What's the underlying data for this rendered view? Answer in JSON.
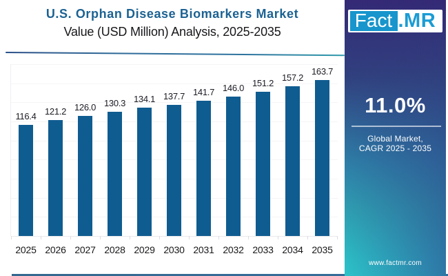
{
  "header": {
    "title": "U.S. Orphan Disease Biomarkers Market",
    "subtitle": "Value (USD Million) Analysis, 2025-2035"
  },
  "chart_data": {
    "type": "bar",
    "title": "U.S. Orphan Disease Biomarkers Market",
    "subtitle": "Value (USD Million) Analysis, 2025-2035",
    "categories": [
      "2025",
      "2026",
      "2027",
      "2028",
      "2029",
      "2030",
      "2031",
      "2032",
      "2033",
      "2034",
      "2035"
    ],
    "values": [
      116.4,
      121.2,
      126.0,
      130.3,
      134.1,
      137.7,
      141.7,
      146.0,
      151.2,
      157.2,
      163.7
    ],
    "xlabel": "",
    "ylabel": "Value (USD Million)",
    "ylim": [
      0,
      180
    ],
    "grid": true,
    "legend": false,
    "bar_color": "#0f5c90",
    "value_label_decimals": 1
  },
  "sidebar": {
    "logo": {
      "text_primary": "Fact",
      "text_secondary": ".MR"
    },
    "cagr_value": "11.0%",
    "cagr_label_line1": "Global Market,",
    "cagr_label_line2": "CAGR 2025 - 2035",
    "website": "www.factmr.com"
  },
  "colors": {
    "bar": "#0f5c90",
    "title": "#1c6292",
    "logo_accent": "#1795cc",
    "sidebar_top": "#342a76",
    "sidebar_bottom_left": "#2cbcc4",
    "sidebar_bottom_right": "#2e74a5"
  }
}
